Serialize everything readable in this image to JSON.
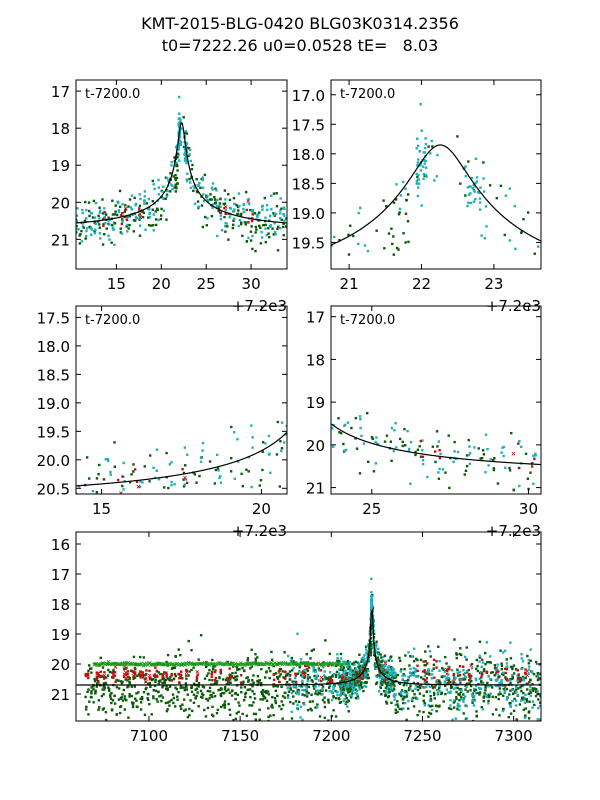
{
  "title": {
    "line1": "KMT-2015-BLG-0420 BLG03K0314.2356",
    "line2": "t0=7222.26 u0=0.0528 tE=   8.03"
  },
  "colors": {
    "dark_green": "#0b5a0b",
    "cyan": "#1fb0b8",
    "red": "#c01010",
    "green_x": "#1a9a1a",
    "model": "#000000"
  },
  "model": {
    "t0": 7222.26,
    "u0": 0.0528,
    "tE": 8.03,
    "baseline_mag": 20.7,
    "peak_mag": 17.85
  },
  "chart_data": [
    {
      "id": "panel-top-left",
      "type": "scatter",
      "label": "t-7200.0",
      "x_offset_label": "+7.2e3",
      "xlim": [
        10.5,
        34.0
      ],
      "ylim": [
        21.8,
        16.7
      ],
      "xticks": [
        15,
        20,
        25,
        30
      ],
      "yticks": [
        17,
        18,
        19,
        20,
        21
      ],
      "ytick_labels": [
        "17",
        "18",
        "19",
        "20",
        "21"
      ]
    },
    {
      "id": "panel-top-right",
      "type": "scatter",
      "label": "t-7200.0",
      "x_offset_label": "+7.2e3",
      "xlim": [
        20.75,
        23.65
      ],
      "ylim": [
        19.95,
        16.75
      ],
      "xticks": [
        21,
        22,
        23
      ],
      "yticks": [
        17.0,
        17.5,
        18.0,
        18.5,
        19.0,
        19.5
      ],
      "ytick_labels": [
        "17.0",
        "17.5",
        "18.0",
        "18.5",
        "19.0",
        "19.5"
      ]
    },
    {
      "id": "panel-mid-left",
      "type": "scatter",
      "label": "t-7200.0",
      "x_offset_label": "+7.2e3",
      "xlim": [
        14.2,
        20.8
      ],
      "ylim": [
        20.6,
        17.3
      ],
      "xticks": [
        15,
        20
      ],
      "yticks": [
        17.5,
        18.0,
        18.5,
        19.0,
        19.5,
        20.0,
        20.5
      ],
      "ytick_labels": [
        "17.5",
        "18.0",
        "18.5",
        "19.0",
        "19.5",
        "20.0",
        "20.5"
      ]
    },
    {
      "id": "panel-mid-right",
      "type": "scatter",
      "label": "t-7200.0",
      "x_offset_label": "+7.2e3",
      "xlim": [
        23.7,
        30.4
      ],
      "ylim": [
        21.15,
        16.75
      ],
      "xticks": [
        25,
        30
      ],
      "yticks": [
        17,
        18,
        19,
        20,
        21
      ],
      "ytick_labels": [
        "17",
        "18",
        "19",
        "20",
        "21"
      ]
    },
    {
      "id": "panel-bottom",
      "type": "scatter",
      "label": "",
      "x_offset_label": "",
      "xlim": [
        7060,
        7315
      ],
      "ylim": [
        21.9,
        15.6
      ],
      "xticks": [
        7100,
        7150,
        7200,
        7250,
        7300
      ],
      "yticks": [
        16,
        17,
        18,
        19,
        20,
        21
      ],
      "ytick_labels": [
        "16",
        "17",
        "18",
        "19",
        "20",
        "21"
      ]
    }
  ]
}
